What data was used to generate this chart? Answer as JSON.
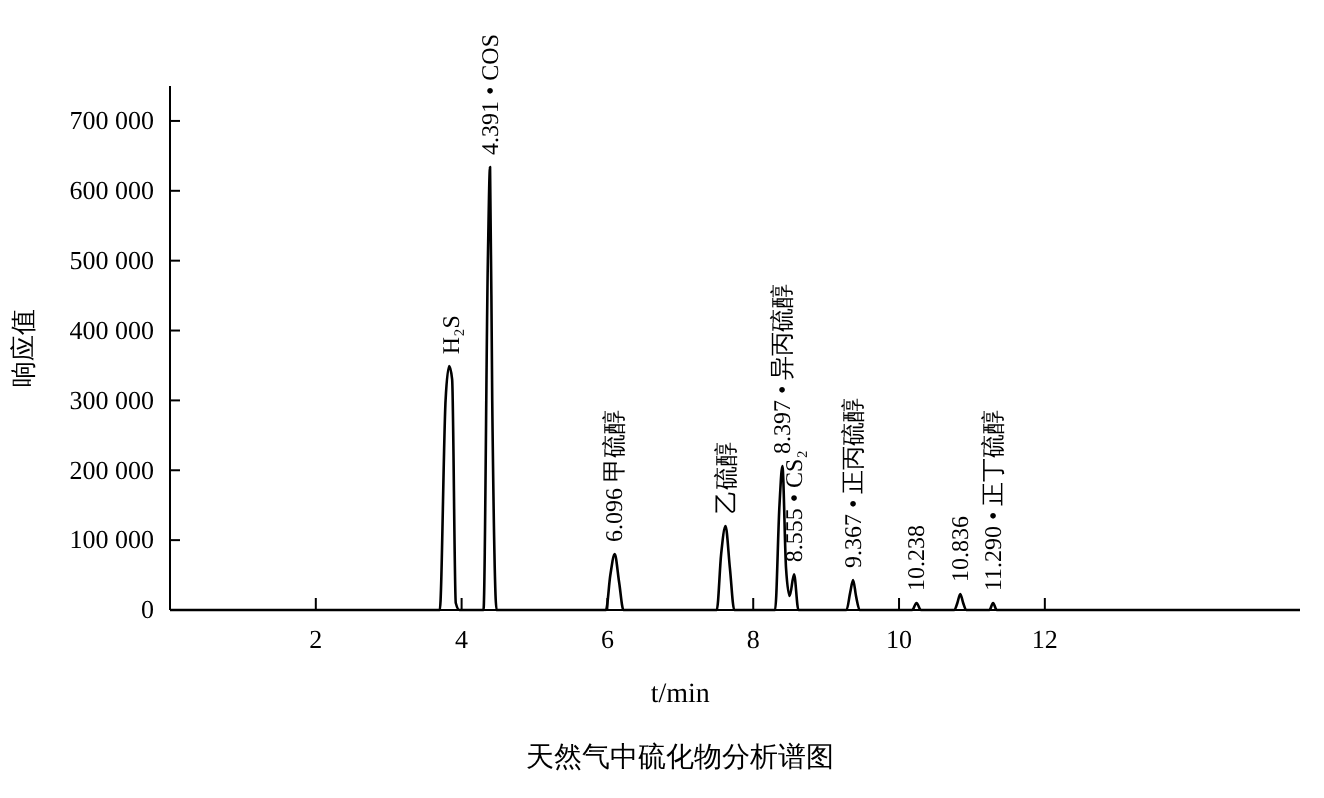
{
  "chart_data": {
    "type": "line",
    "title": "天然气中硫化物分析谱图",
    "xlabel": "t/min",
    "ylabel": "响应值",
    "xlim": [
      0,
      15.5
    ],
    "xticks": [
      2,
      4,
      6,
      8,
      10,
      12
    ],
    "ylim": [
      0,
      750000
    ],
    "yticks": [
      {
        "value": 0,
        "label": "0"
      },
      {
        "value": 100000,
        "label": "100 000"
      },
      {
        "value": 200000,
        "label": "200 000"
      },
      {
        "value": 300000,
        "label": "300 000"
      },
      {
        "value": 400000,
        "label": "400 000"
      },
      {
        "value": 500000,
        "label": "500 000"
      },
      {
        "value": 600000,
        "label": "600 000"
      },
      {
        "value": 700000,
        "label": "700 000"
      }
    ],
    "grid": false,
    "marker": "none",
    "line_style": "solid",
    "series": [
      {
        "color": "#000000",
        "x": [
          0,
          3.7,
          3.78,
          3.83,
          3.87,
          3.92,
          3.97,
          4.3,
          4.36,
          4.39,
          4.42,
          4.48,
          5.98,
          6.04,
          6.1,
          6.16,
          6.22,
          7.5,
          7.56,
          7.62,
          7.68,
          7.74,
          8.3,
          8.36,
          8.4,
          8.45,
          8.5,
          8.56,
          8.62,
          9.28,
          9.33,
          9.37,
          9.41,
          9.46,
          10.18,
          10.24,
          10.3,
          10.76,
          10.8,
          10.84,
          10.88,
          10.92,
          11.24,
          11.29,
          11.34,
          15.5
        ],
        "values": [
          0,
          0,
          300000,
          349000,
          330000,
          10000,
          0,
          0,
          500000,
          634000,
          300000,
          0,
          0,
          50000,
          80000,
          40000,
          0,
          0,
          80000,
          120000,
          60000,
          0,
          0,
          150000,
          206000,
          60000,
          20000,
          51000,
          0,
          0,
          25000,
          43000,
          20000,
          0,
          0,
          10000,
          0,
          0,
          10000,
          23000,
          10000,
          0,
          0,
          10000,
          0,
          0
        ]
      }
    ],
    "annotations": [
      {
        "text": "H₂S",
        "x": 3.85,
        "y": 349000
      },
      {
        "text": "4.391 • COS",
        "x": 4.391,
        "y": 634000
      },
      {
        "text": "6.096 甲硫醇",
        "x": 6.096,
        "y": 80000
      },
      {
        "text": "乙硫醇",
        "x": 7.62,
        "y": 120000
      },
      {
        "text": "8.397 • 异丙硫醇",
        "x": 8.4,
        "y": 206000
      },
      {
        "text": "8.555 • CS₂",
        "x": 8.555,
        "y": 51000
      },
      {
        "text": "9.367 • 正丙硫醇",
        "x": 9.367,
        "y": 43000
      },
      {
        "text": "10.238",
        "x": 10.238,
        "y": 10000
      },
      {
        "text": "10.836",
        "x": 10.836,
        "y": 23000
      },
      {
        "text": "11.290 • 正丁硫醇",
        "x": 11.29,
        "y": 10000
      }
    ]
  }
}
